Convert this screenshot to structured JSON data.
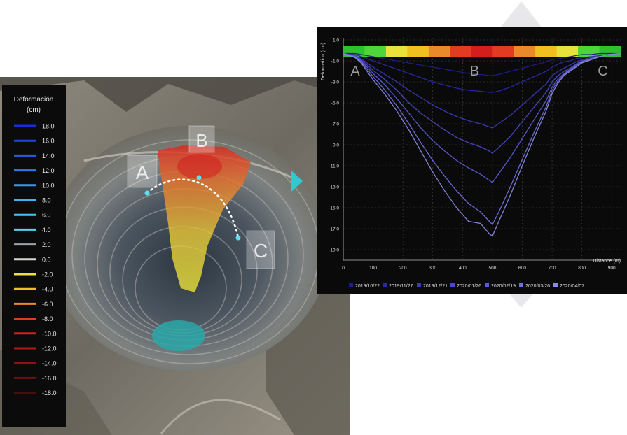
{
  "map": {
    "legend_title_1": "Deformación",
    "legend_title_2": "(cm)",
    "legend": [
      {
        "label": "18.0",
        "color": "#1530d8"
      },
      {
        "label": "16.0",
        "color": "#1d46e0"
      },
      {
        "label": "14.0",
        "color": "#2460e6"
      },
      {
        "label": "12.0",
        "color": "#2d7cec"
      },
      {
        "label": "10.0",
        "color": "#3797ee"
      },
      {
        "label": "8.0",
        "color": "#3fb2f0"
      },
      {
        "label": "6.0",
        "color": "#46c7ef"
      },
      {
        "label": "4.0",
        "color": "#4fd9ec"
      },
      {
        "label": "2.0",
        "color": "#9aa3aa"
      },
      {
        "label": "0.0",
        "color": "#d8d8c8"
      },
      {
        "label": "-2.0",
        "color": "#e8e23a"
      },
      {
        "label": "-4.0",
        "color": "#f0c020"
      },
      {
        "label": "-6.0",
        "color": "#e88a2a"
      },
      {
        "label": "-8.0",
        "color": "#e23b22"
      },
      {
        "label": "-10.0",
        "color": "#d41e1e"
      },
      {
        "label": "-12.0",
        "color": "#b31616"
      },
      {
        "label": "-14.0",
        "color": "#8f1212"
      },
      {
        "label": "-16.0",
        "color": "#6b1010"
      },
      {
        "label": "-18.0",
        "color": "#4a0d0d"
      }
    ],
    "markers": {
      "a": "A",
      "b": "B",
      "c": "C"
    }
  },
  "chart_data": {
    "type": "line",
    "ylabel": "Deformation (cm)",
    "xlabel": "Distance (m)",
    "xlim": [
      0,
      930
    ],
    "ylim": [
      -20,
      1.2
    ],
    "xticks": [
      0,
      100,
      200,
      300,
      400,
      500,
      600,
      700,
      800,
      900
    ],
    "yticks": [
      1.0,
      -1.0,
      -3.0,
      -5.0,
      -7.0,
      -9.0,
      -11.0,
      -13.0,
      -15.0,
      -17.0,
      -19.0
    ],
    "ytick_labels": [
      "1.0",
      "-1.0",
      "-3.0",
      "-5.0",
      "-7.0",
      "-9.0",
      "-11.0",
      "-13.0",
      "-15.0",
      "-17.0",
      "-19.0"
    ],
    "annotations": [
      {
        "text": "A",
        "x": 40
      },
      {
        "text": "B",
        "x": 440
      },
      {
        "text": "C",
        "x": 870
      }
    ],
    "x": [
      0,
      40,
      60,
      80,
      100,
      140,
      180,
      220,
      260,
      300,
      340,
      380,
      420,
      460,
      490,
      500,
      520,
      560,
      600,
      640,
      680,
      700,
      720,
      740,
      760,
      780,
      800,
      830,
      860,
      890,
      930
    ],
    "series": [
      {
        "name": "2019/10/22",
        "color": "#1d1d8c",
        "values": [
          -0.3,
          -0.3,
          -0.4,
          -0.5,
          -0.6,
          -0.8,
          -1.0,
          -1.2,
          -1.4,
          -1.6,
          -1.8,
          -2.0,
          -2.2,
          -2.3,
          -2.4,
          -2.4,
          -2.3,
          -2.0,
          -1.7,
          -1.4,
          -1.1,
          -0.9,
          -0.8,
          -0.7,
          -0.6,
          -0.5,
          -0.4,
          -0.4,
          -0.3,
          -0.3,
          -0.3
        ]
      },
      {
        "name": "2019/11/27",
        "color": "#2a2aa0",
        "values": [
          -0.3,
          -0.4,
          -0.6,
          -0.8,
          -1.0,
          -1.4,
          -1.8,
          -2.2,
          -2.6,
          -3.0,
          -3.3,
          -3.6,
          -3.8,
          -3.9,
          -4.0,
          -4.0,
          -3.9,
          -3.5,
          -3.0,
          -2.5,
          -2.0,
          -1.6,
          -1.3,
          -1.1,
          -1.0,
          -0.8,
          -0.7,
          -0.6,
          -0.5,
          -0.4,
          -0.3
        ]
      },
      {
        "name": "2019/12/21",
        "color": "#3a3ab4",
        "values": [
          -0.3,
          -0.5,
          -0.8,
          -1.2,
          -1.6,
          -2.3,
          -3.0,
          -3.8,
          -4.5,
          -5.2,
          -5.8,
          -6.3,
          -6.7,
          -7.0,
          -7.3,
          -7.4,
          -7.0,
          -6.2,
          -5.2,
          -4.2,
          -3.2,
          -2.4,
          -2.0,
          -1.7,
          -1.4,
          -1.1,
          -0.9,
          -0.7,
          -0.6,
          -0.4,
          -0.3
        ]
      },
      {
        "name": "2020/01/26",
        "color": "#4a4ac4",
        "values": [
          -0.3,
          -0.5,
          -0.9,
          -1.4,
          -1.9,
          -2.8,
          -3.8,
          -5.0,
          -6.0,
          -6.8,
          -7.6,
          -8.3,
          -8.8,
          -9.2,
          -9.6,
          -9.8,
          -9.3,
          -8.2,
          -6.8,
          -5.4,
          -4.0,
          -3.0,
          -2.4,
          -2.0,
          -1.7,
          -1.3,
          -1.0,
          -0.8,
          -0.6,
          -0.4,
          -0.3
        ]
      },
      {
        "name": "2020/02/19",
        "color": "#5c5cd0",
        "values": [
          -0.3,
          -0.6,
          -1.0,
          -1.6,
          -2.2,
          -3.3,
          -4.6,
          -6.0,
          -7.4,
          -8.6,
          -9.6,
          -10.5,
          -11.2,
          -11.8,
          -12.4,
          -12.6,
          -11.8,
          -10.2,
          -8.4,
          -6.6,
          -4.8,
          -3.5,
          -2.7,
          -2.2,
          -1.8,
          -1.4,
          -1.1,
          -0.8,
          -0.6,
          -0.4,
          -0.3
        ]
      },
      {
        "name": "2020/03/26",
        "color": "#7070d8",
        "values": [
          -0.3,
          -0.6,
          -1.1,
          -1.8,
          -2.5,
          -3.8,
          -5.3,
          -7.0,
          -8.8,
          -10.5,
          -12.0,
          -13.4,
          -14.6,
          -15.4,
          -16.3,
          -16.6,
          -15.5,
          -13.0,
          -10.4,
          -7.8,
          -5.4,
          -3.8,
          -2.9,
          -2.3,
          -1.9,
          -1.5,
          -1.1,
          -0.8,
          -0.6,
          -0.4,
          -0.3
        ]
      },
      {
        "name": "2020/04/07",
        "color": "#8a8ae0",
        "values": [
          -0.3,
          -0.7,
          -1.2,
          -2.0,
          -2.8,
          -4.2,
          -5.8,
          -7.6,
          -9.6,
          -11.6,
          -13.4,
          -15.0,
          -16.3,
          -16.5,
          -17.5,
          -17.7,
          -16.4,
          -13.8,
          -11.0,
          -8.3,
          -5.8,
          -4.1,
          -3.1,
          -2.4,
          -2.0,
          -1.6,
          -1.2,
          -0.9,
          -0.6,
          -0.4,
          -0.3
        ]
      }
    ],
    "status_bar": [
      "#2ec22e",
      "#4fd43a",
      "#e8e23a",
      "#f0c020",
      "#e88a2a",
      "#e23b22",
      "#d41e1e",
      "#e23b22",
      "#e88a2a",
      "#f0c020",
      "#e8e23a",
      "#4fd43a",
      "#2ec22e"
    ],
    "grid": true,
    "legend_position": "bottom"
  }
}
